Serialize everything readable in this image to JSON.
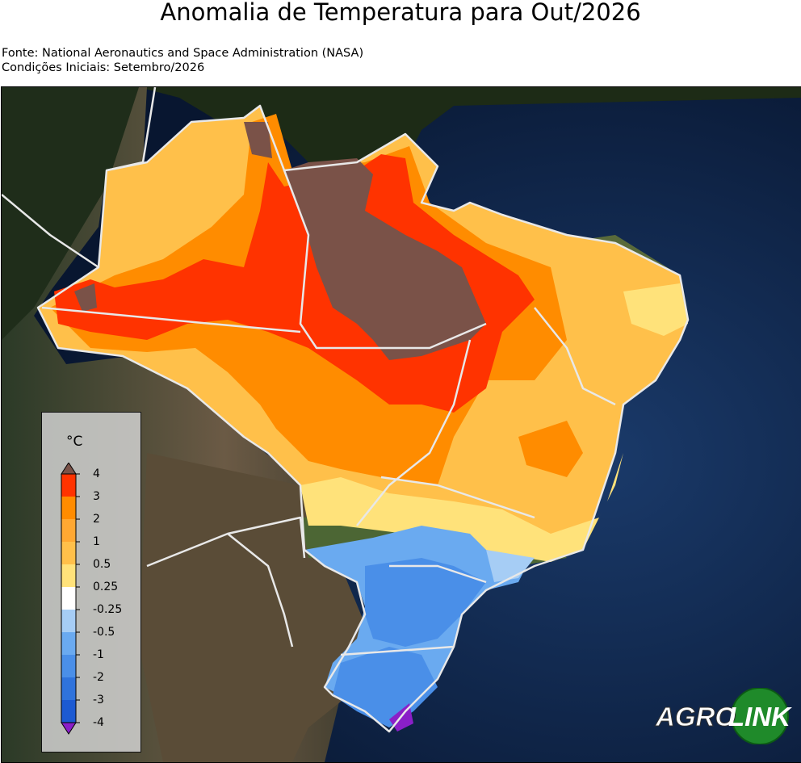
{
  "title": "Anomalia de Temperatura para Out/2026",
  "source_line": "Fonte: National Aeronautics and Space Administration (NASA)",
  "initial_conditions_line": "Condições Iniciais: Setembro/2026",
  "legend": {
    "unit": "°C",
    "ticks": [
      "4",
      "3",
      "2",
      "1",
      "0.5",
      "0.25",
      "-0.25",
      "-0.5",
      "-1",
      "-2",
      "-3",
      "-4"
    ],
    "bins": [
      {
        "range": "3 to 4",
        "color": "#ff3300"
      },
      {
        "range": "2 to 3",
        "color": "#ff8c00"
      },
      {
        "range": "1 to 2",
        "color": "#ffa832"
      },
      {
        "range": "0.5 to 1",
        "color": "#ffc04a"
      },
      {
        "range": "0.25 to 0.5",
        "color": "#ffe27a"
      },
      {
        "range": "-0.25 to 0.25",
        "color": "#ffffff"
      },
      {
        "range": "-0.5 to -0.25",
        "color": "#a6cdf5"
      },
      {
        "range": "-1 to -0.5",
        "color": "#6aaaf0"
      },
      {
        "range": "-2 to -1",
        "color": "#4a8fe8"
      },
      {
        "range": "-3 to -2",
        "color": "#2f73dc"
      },
      {
        "range": "-4 to -3",
        "color": "#1c5ad2"
      }
    ],
    "over_color": "#7a5248",
    "under_color": "#8a1fc8"
  },
  "logo": {
    "part1": "AGRO",
    "part2": "LINK"
  },
  "colors": {
    "ocean": "#0d2142",
    "land": "#2a3820",
    "border": "#e8e8e8"
  }
}
